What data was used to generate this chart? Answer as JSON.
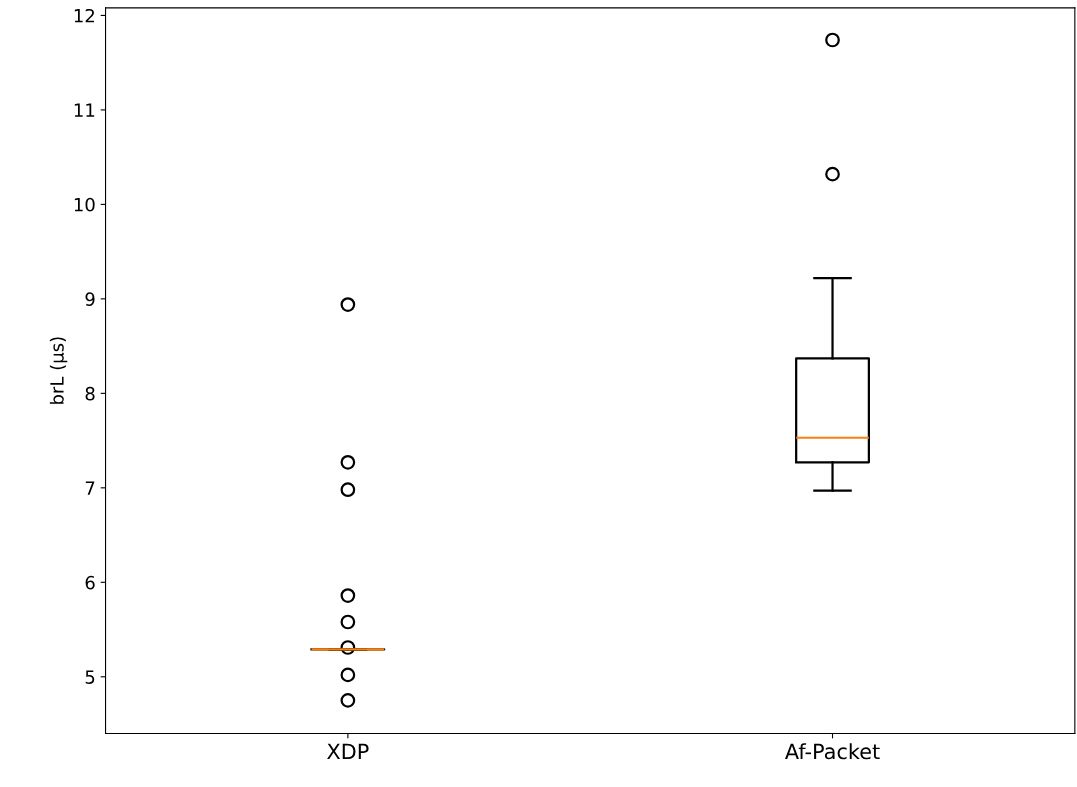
{
  "chart_data": {
    "type": "box",
    "ylabel": "brL (µs)",
    "categories": [
      "XDP",
      "Af-Packet"
    ],
    "boxes": [
      {
        "low": 5.29,
        "q1": 5.29,
        "median": 5.29,
        "q3": 5.29,
        "high": 5.29,
        "outliers": [
          4.75,
          5.02,
          5.31,
          5.58,
          5.86,
          6.98,
          7.27,
          8.94
        ]
      },
      {
        "low": 6.97,
        "q1": 7.27,
        "median": 7.53,
        "q3": 8.37,
        "high": 9.22,
        "outliers": [
          10.32,
          11.74
        ]
      }
    ],
    "ylim": [
      4.4,
      12.08
    ],
    "yticks": [
      5,
      6,
      7,
      8,
      9,
      10,
      11,
      12
    ],
    "grid": false,
    "legend": false
  }
}
